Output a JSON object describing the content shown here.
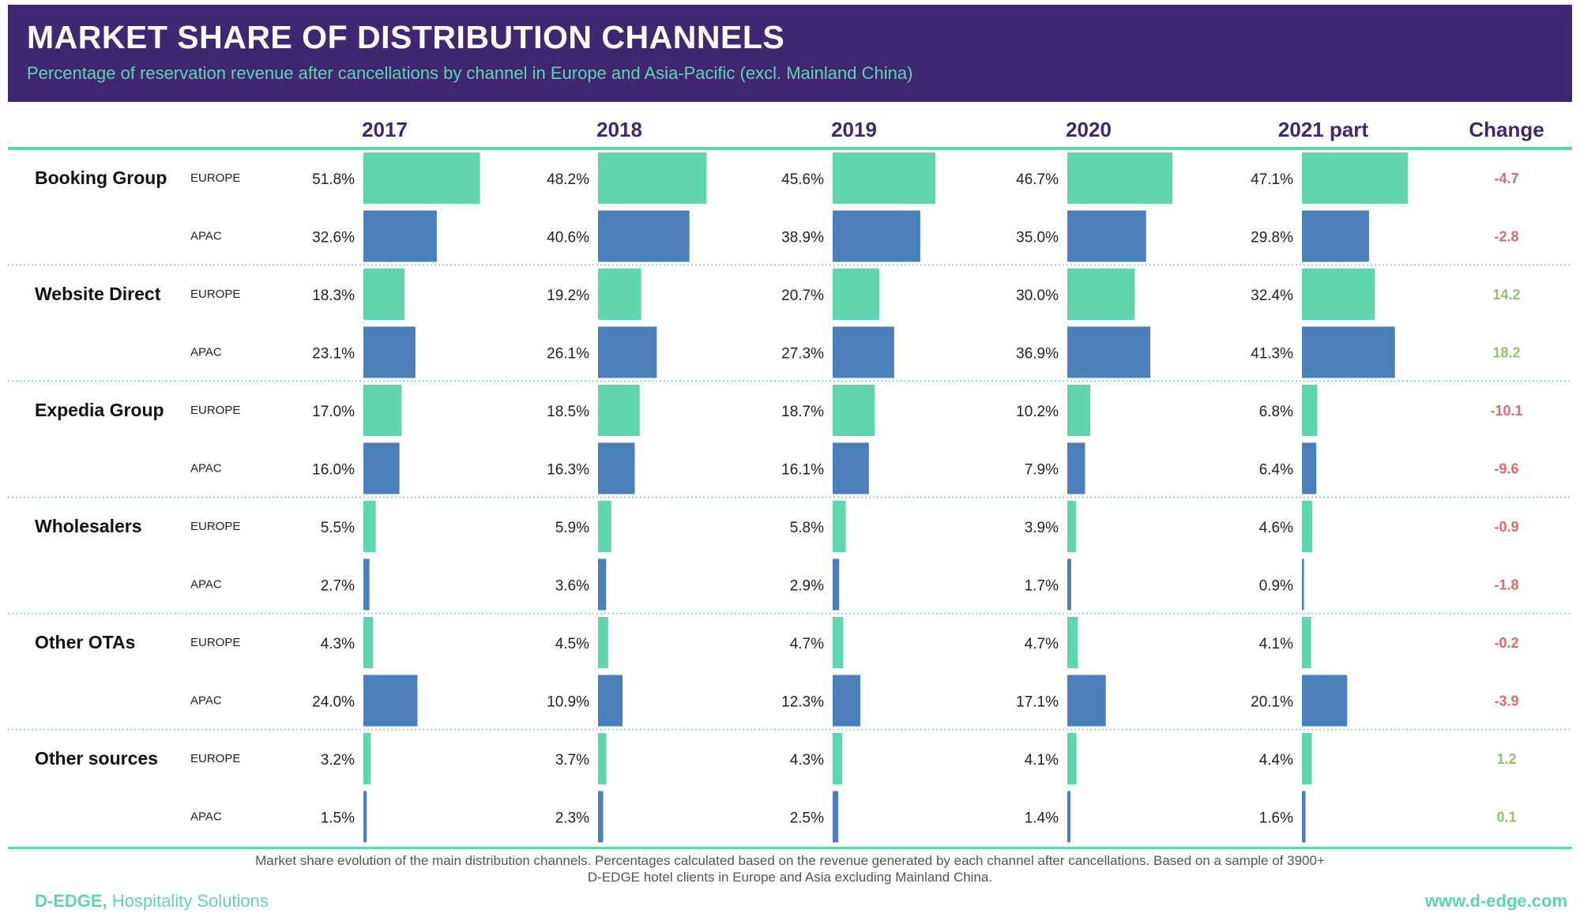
{
  "header": {
    "title": "MARKET SHARE OF DISTRIBUTION CHANNELS",
    "subtitle": "Percentage of reservation revenue after cancellations by channel in Europe and Asia-Pacific (excl. Mainland China)"
  },
  "chart_data": {
    "type": "bar",
    "title": "MARKET SHARE OF DISTRIBUTION CHANNELS",
    "subtitle": "Percentage of reservation revenue after cancellations by channel in Europe and Asia-Pacific (excl. Mainland China)",
    "periods": [
      "2017",
      "2018",
      "2019",
      "2020",
      "2021 part"
    ],
    "change_label": "Change",
    "unit": "%",
    "colors": {
      "EUROPE": "#5fd6b0",
      "APAC": "#4a7fba",
      "positive": "#8cc36b",
      "negative": "#e2666b"
    },
    "channels": [
      {
        "name": "Booking Group",
        "rows": [
          {
            "region": "EUROPE",
            "values": [
              51.8,
              48.2,
              45.6,
              46.7,
              47.1
            ],
            "labels": [
              "51.8%",
              "48.2%",
              "45.6%",
              "46.7%",
              "47.1%"
            ],
            "change": "-4.7"
          },
          {
            "region": "APAC",
            "values": [
              32.6,
              40.6,
              38.9,
              35.0,
              29.8
            ],
            "labels": [
              "32.6%",
              "40.6%",
              "38.9%",
              "35.0%",
              "29.8%"
            ],
            "change": "-2.8"
          }
        ]
      },
      {
        "name": "Website Direct",
        "rows": [
          {
            "region": "EUROPE",
            "values": [
              18.3,
              19.2,
              20.7,
              30.0,
              32.4
            ],
            "labels": [
              "18.3%",
              "19.2%",
              "20.7%",
              "30.0%",
              "32.4%"
            ],
            "change": "14.2"
          },
          {
            "region": "APAC",
            "values": [
              23.1,
              26.1,
              27.3,
              36.9,
              41.3
            ],
            "labels": [
              "23.1%",
              "26.1%",
              "27.3%",
              "36.9%",
              "41.3%"
            ],
            "change": "18.2"
          }
        ]
      },
      {
        "name": "Expedia Group",
        "rows": [
          {
            "region": "EUROPE",
            "values": [
              17.0,
              18.5,
              18.7,
              10.2,
              6.8
            ],
            "labels": [
              "17.0%",
              "18.5%",
              "18.7%",
              "10.2%",
              "6.8%"
            ],
            "change": "-10.1"
          },
          {
            "region": "APAC",
            "values": [
              16.0,
              16.3,
              16.1,
              7.9,
              6.4
            ],
            "labels": [
              "16.0%",
              "16.3%",
              "16.1%",
              "7.9%",
              "6.4%"
            ],
            "change": "-9.6"
          }
        ]
      },
      {
        "name": "Wholesalers",
        "rows": [
          {
            "region": "EUROPE",
            "values": [
              5.5,
              5.9,
              5.8,
              3.9,
              4.6
            ],
            "labels": [
              "5.5%",
              "5.9%",
              "5.8%",
              "3.9%",
              "4.6%"
            ],
            "change": "-0.9"
          },
          {
            "region": "APAC",
            "values": [
              2.7,
              3.6,
              2.9,
              1.7,
              0.9
            ],
            "labels": [
              "2.7%",
              "3.6%",
              "2.9%",
              "1.7%",
              "0.9%"
            ],
            "change": "-1.8"
          }
        ]
      },
      {
        "name": "Other OTAs",
        "rows": [
          {
            "region": "EUROPE",
            "values": [
              4.3,
              4.5,
              4.7,
              4.7,
              4.1
            ],
            "labels": [
              "4.3%",
              "4.5%",
              "4.7%",
              "4.7%",
              "4.1%"
            ],
            "change": "-0.2"
          },
          {
            "region": "APAC",
            "values": [
              24.0,
              10.9,
              12.3,
              17.1,
              20.1
            ],
            "labels": [
              "24.0%",
              "10.9%",
              "12.3%",
              "17.1%",
              "20.1%"
            ],
            "change": "-3.9"
          }
        ]
      },
      {
        "name": "Other sources",
        "rows": [
          {
            "region": "EUROPE",
            "values": [
              3.2,
              3.7,
              4.3,
              4.1,
              4.4
            ],
            "labels": [
              "3.2%",
              "3.7%",
              "4.3%",
              "4.1%",
              "4.4%"
            ],
            "change": "1.2"
          },
          {
            "region": "APAC",
            "values": [
              1.5,
              2.3,
              2.5,
              1.4,
              1.6
            ],
            "labels": [
              "1.5%",
              "2.3%",
              "2.5%",
              "1.4%",
              "1.6%"
            ],
            "change": "0.1"
          }
        ]
      }
    ]
  },
  "footer": {
    "note_line1": "Market share evolution of the main distribution channels. Percentages calculated based on the revenue generated by each channel after cancellations. Based on a sample of 3900+",
    "note_line2": "D-EDGE hotel clients in Europe and Asia excluding Mainland China.",
    "brand_name": "D-EDGE,",
    "brand_tagline": " Hospitality Solutions",
    "website": "www.d-edge.com"
  }
}
